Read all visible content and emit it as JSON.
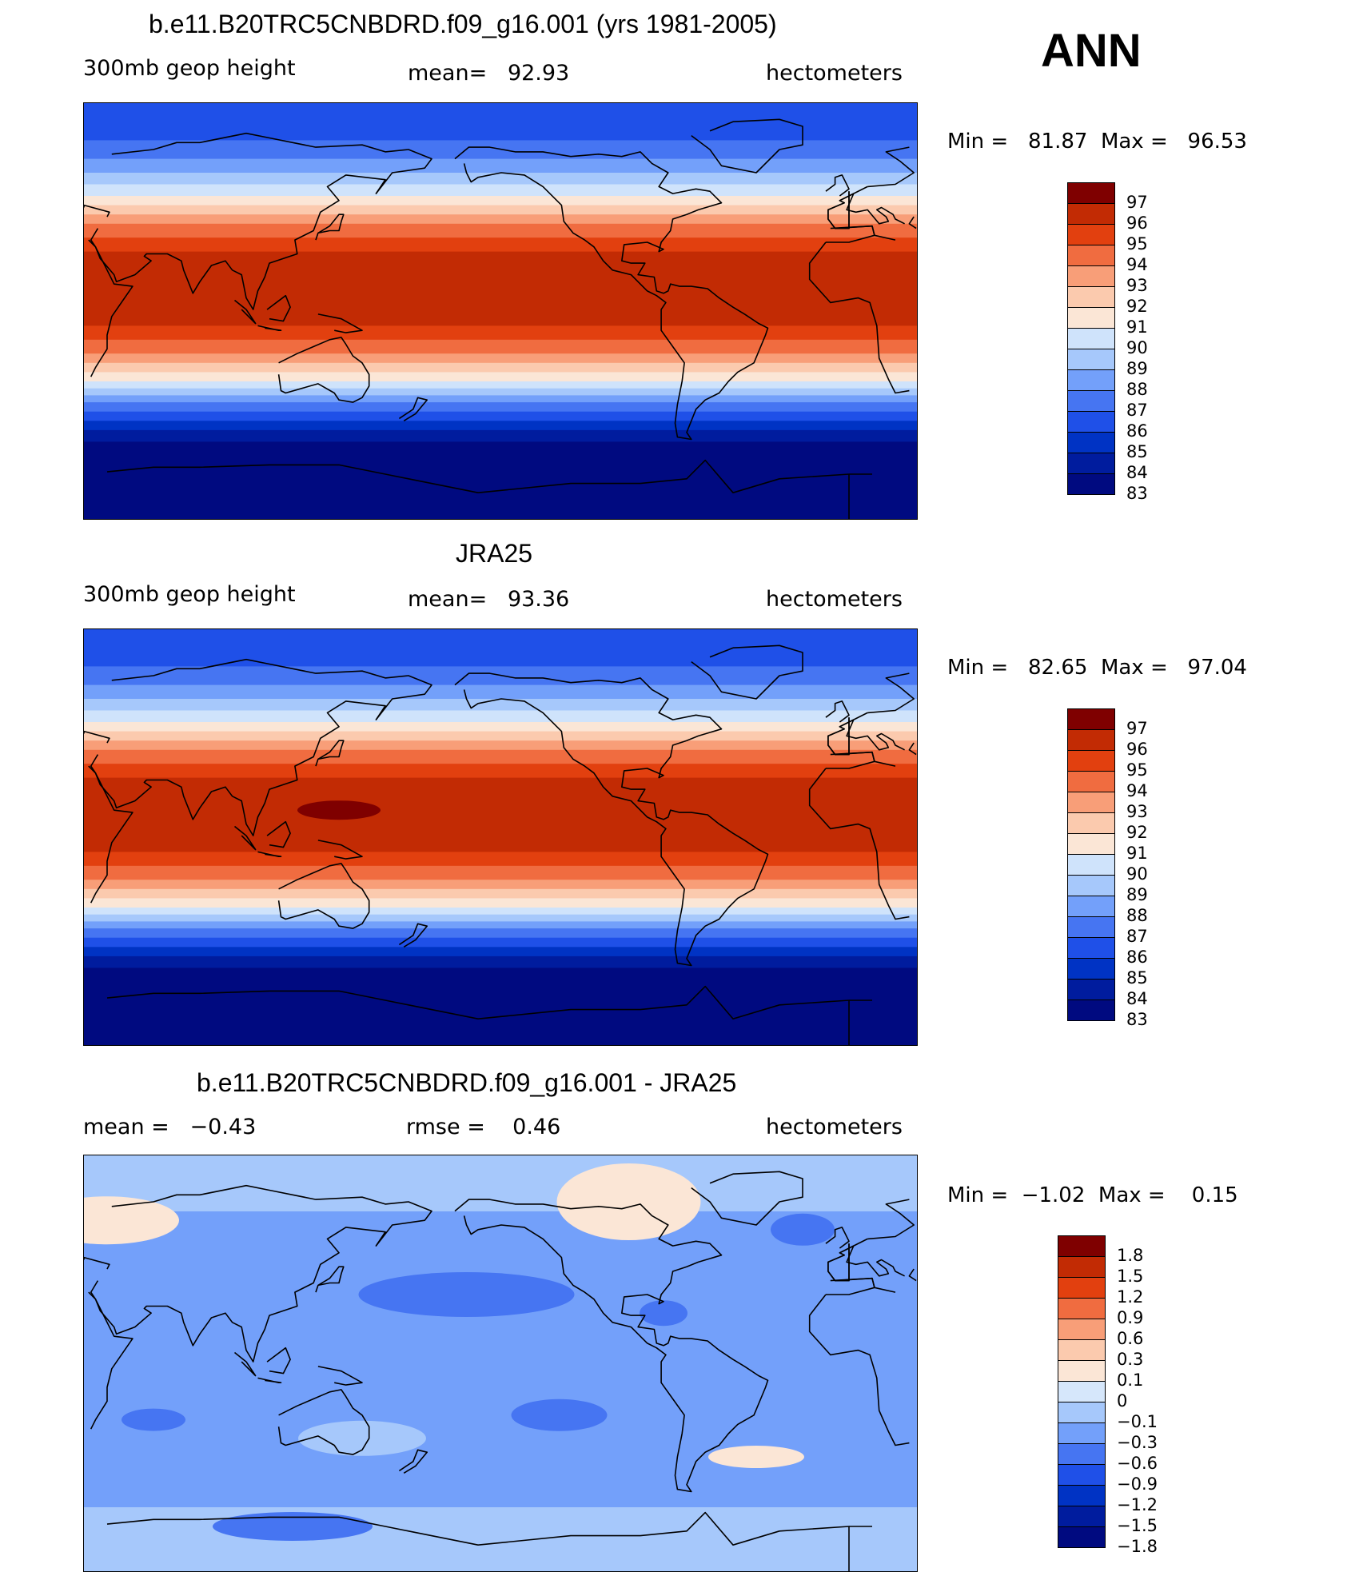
{
  "page": {
    "season": "ANN"
  },
  "palette_abs": [
    "#000a80",
    "#001c9e",
    "#0033c4",
    "#1f50e8",
    "#4675f2",
    "#73a0fa",
    "#a6c8fb",
    "#cfe3fb",
    "#fbe6d6",
    "#fbcaae",
    "#f89e78",
    "#f06c40",
    "#e2400f",
    "#c22b04",
    "#7f0000"
  ],
  "palette_diff": [
    "#000a80",
    "#001c9e",
    "#0033c4",
    "#1f50e8",
    "#4675f2",
    "#73a0fa",
    "#a6c8fb",
    "#d6e7fb",
    "#fbe6d6",
    "#fbcaae",
    "#f89e78",
    "#f06c40",
    "#e2400f",
    "#c22b04",
    "#7f0000"
  ],
  "panels": [
    {
      "title": "b.e11.B20TRC5CNBDRD.f09_g16.001 (yrs 1981-2005)",
      "left_label": "300mb geop height",
      "center_label": "mean=   92.93",
      "right_label": "hectometers",
      "minmax": "Min =   81.87  Max =   96.53",
      "map_type": "abs",
      "colorbar_labels": [
        "97",
        "96",
        "95",
        "94",
        "93",
        "92",
        "91",
        "90",
        "89",
        "88",
        "87",
        "86",
        "85",
        "84",
        "83"
      ]
    },
    {
      "title": "JRA25",
      "left_label": "300mb geop height",
      "center_label": "mean=   93.36",
      "right_label": "hectometers",
      "minmax": "Min =   82.65  Max =   97.04",
      "map_type": "abs",
      "colorbar_labels": [
        "97",
        "96",
        "95",
        "94",
        "93",
        "92",
        "91",
        "90",
        "89",
        "88",
        "87",
        "86",
        "85",
        "84",
        "83"
      ]
    },
    {
      "title": "b.e11.B20TRC5CNBDRD.f09_g16.001 - JRA25",
      "left_label": "mean =   −0.43",
      "center_label": "rmse =    0.46",
      "right_label": "hectometers",
      "minmax": "Min =  −1.02  Max =    0.15",
      "map_type": "diff",
      "colorbar_labels": [
        "1.8",
        "1.5",
        "1.2",
        "0.9",
        "0.6",
        "0.3",
        "0.1",
        "0",
        "−0.1",
        "−0.3",
        "−0.6",
        "−0.9",
        "−1.2",
        "−1.5",
        "−1.8"
      ]
    }
  ]
}
